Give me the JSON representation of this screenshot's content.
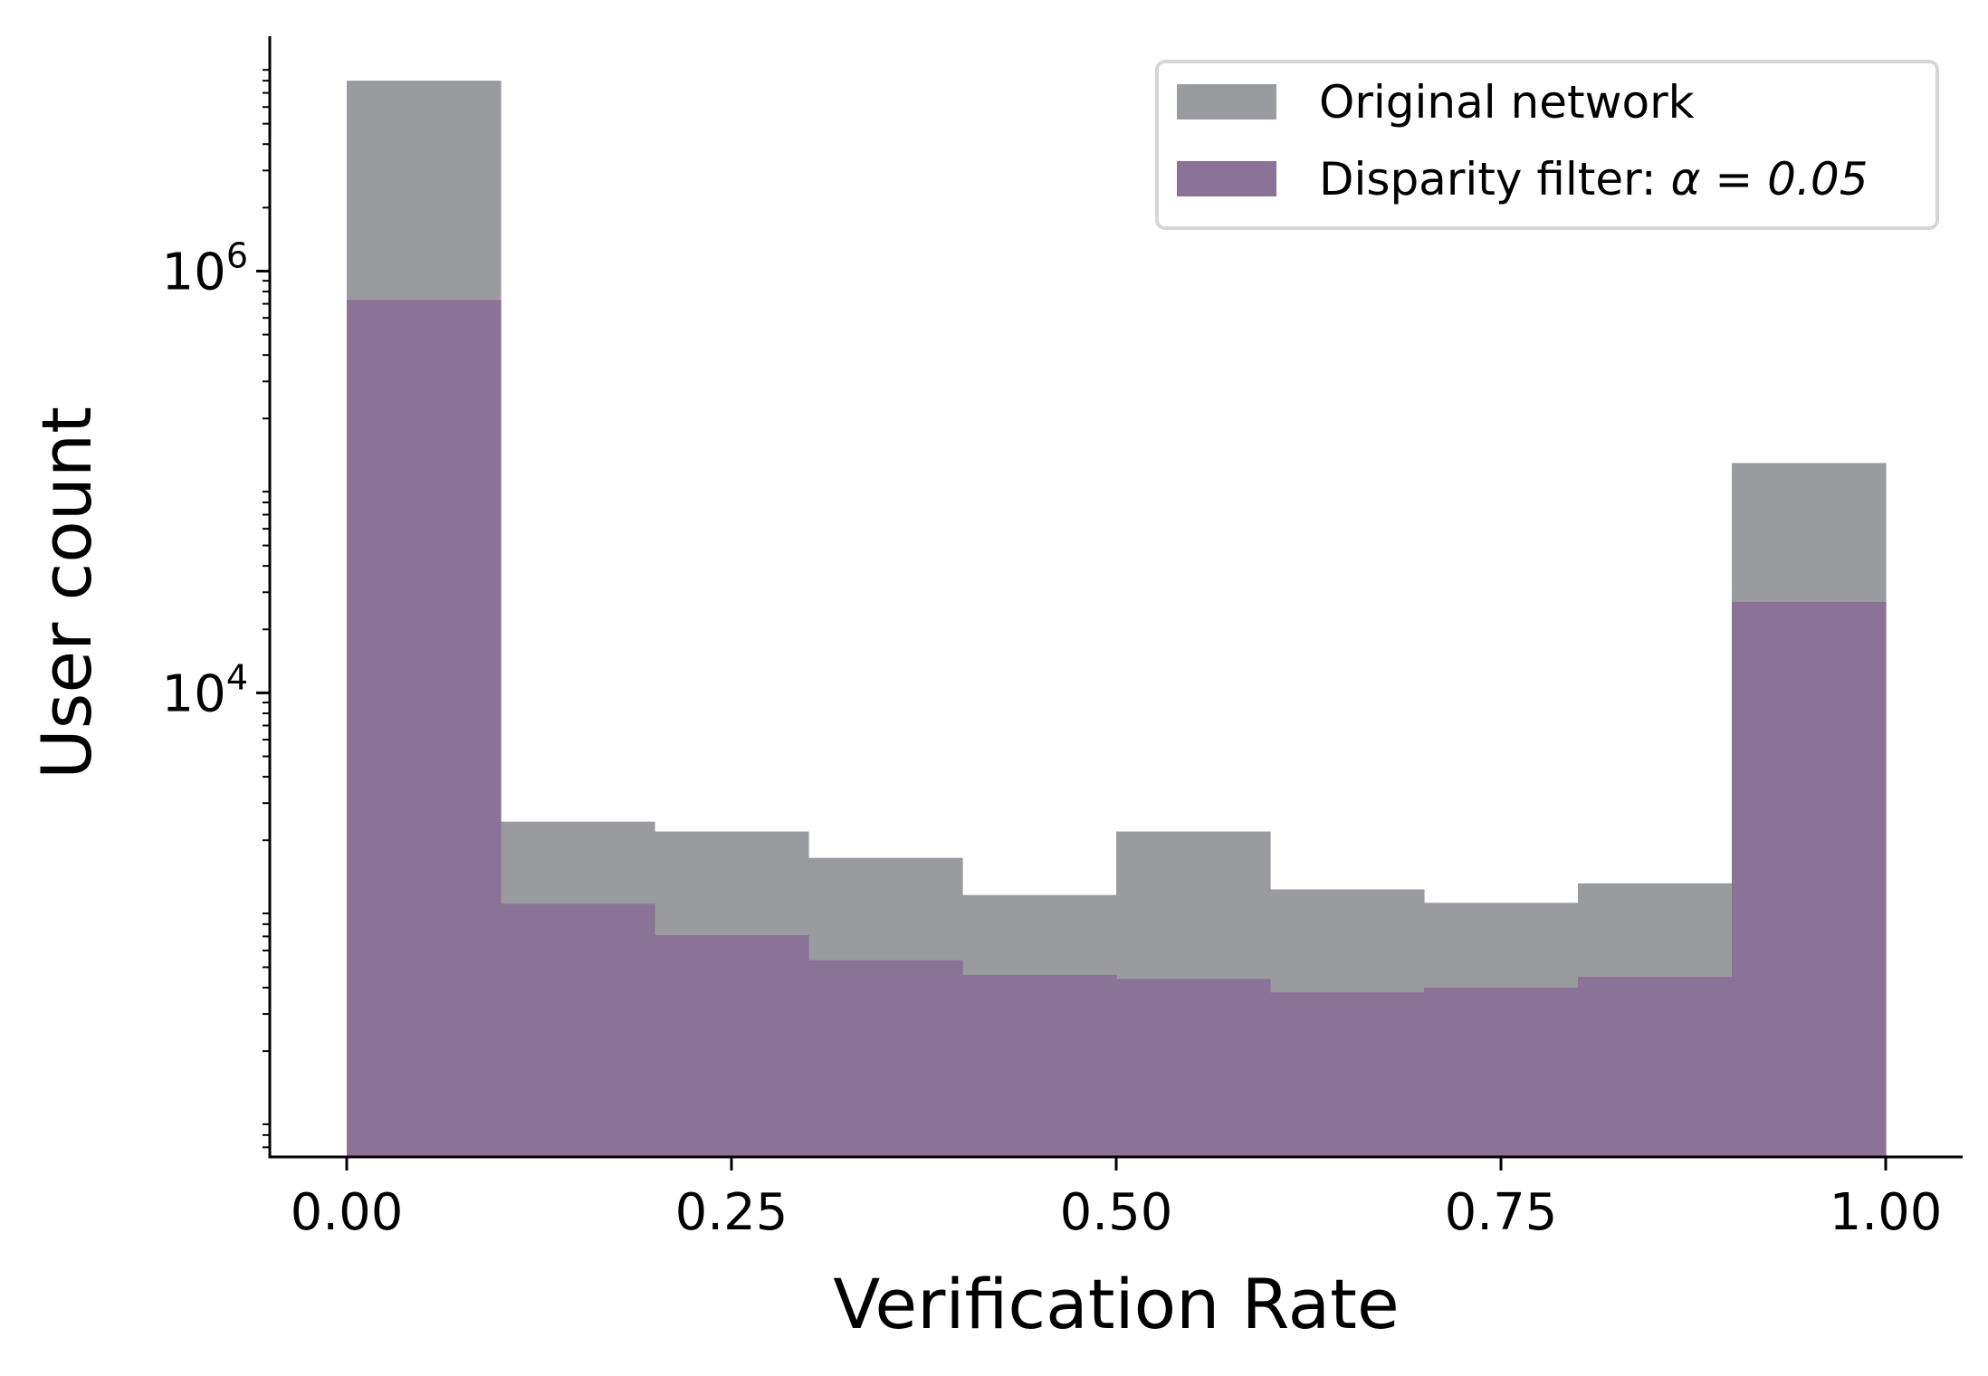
{
  "chart_data": {
    "type": "bar",
    "subtype": "histogram",
    "xlabel": "Verification Rate",
    "ylabel": "User count",
    "yscale": "log",
    "xlim": [
      -0.05,
      1.05
    ],
    "ylim": [
      63,
      13000000
    ],
    "bin_edges": [
      0.0,
      0.1,
      0.2,
      0.3,
      0.4,
      0.5,
      0.6,
      0.7,
      0.8,
      0.9,
      1.0
    ],
    "x_ticks": [
      0.0,
      0.25,
      0.5,
      0.75,
      1.0
    ],
    "x_tick_labels": [
      "0.00",
      "0.25",
      "0.50",
      "0.75",
      "1.00"
    ],
    "y_ticks": [
      {
        "value": 1000000,
        "base": "10",
        "exp": "6"
      },
      {
        "value": 10000,
        "base": "10",
        "exp": "4"
      }
    ],
    "series": [
      {
        "name": "Original network",
        "color": "#9a9b9e",
        "values": [
          8000000,
          2450,
          2200,
          1650,
          1100,
          2200,
          1170,
          1010,
          1250,
          123000
        ]
      },
      {
        "name": "Disparity filter: α = 0.05",
        "legend_prefix": "Disparity filter: ",
        "legend_math": "α = 0.05",
        "color": "#8b7297",
        "values": [
          730000,
          1000,
          710,
          540,
          460,
          440,
          380,
          400,
          450,
          27000
        ]
      }
    ],
    "legend_position": "top-right",
    "grid": false
  }
}
